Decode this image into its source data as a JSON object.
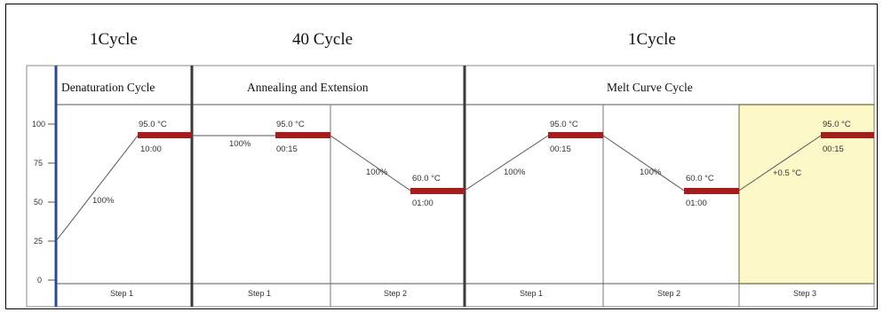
{
  "cycles": {
    "denaturation": "1Cycle",
    "annealing": "40 Cycle",
    "melt": "1Cycle"
  },
  "stages": {
    "denaturation": "Denaturation Cycle",
    "annealing": "Annealing and Extension",
    "melt": "Melt Curve Cycle"
  },
  "y_axis": {
    "ticks": [
      "0",
      "25",
      "50",
      "75",
      "100"
    ]
  },
  "steps": [
    {
      "stage": "denaturation",
      "label": "Step 1",
      "temp": "95.0 °C",
      "time": "10:00",
      "ramp": "100%"
    },
    {
      "stage": "annealing",
      "label": "Step 1",
      "temp": "95.0 °C",
      "time": "00:15",
      "ramp": "100%"
    },
    {
      "stage": "annealing",
      "label": "Step 2",
      "temp": "60.0 °C",
      "time": "01:00",
      "ramp": "100%"
    },
    {
      "stage": "melt",
      "label": "Step 1",
      "temp": "95.0 °C",
      "time": "00:15",
      "ramp": "100%"
    },
    {
      "stage": "melt",
      "label": "Step 2",
      "temp": "60.0 °C",
      "time": "01:00",
      "ramp": "100%"
    },
    {
      "stage": "melt",
      "label": "Step 3",
      "temp": "95.0 °C",
      "time": "00:15",
      "ramp": "+0.5 °C",
      "highlighted": true
    }
  ],
  "colors": {
    "hold_bar": "#a61b1b",
    "highlight": "#fdf8c8",
    "highlight_border": "#e8d87a",
    "stage_divider": "#3a3a3a",
    "axis_blue": "#2b4a8f"
  }
}
